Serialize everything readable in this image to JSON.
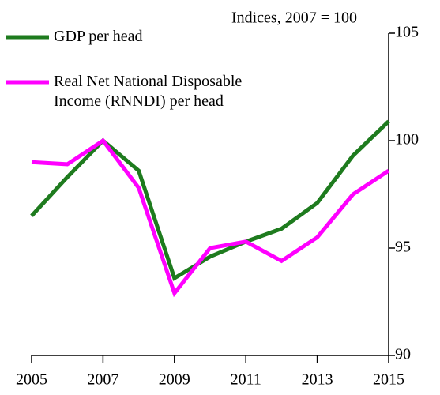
{
  "chart_data": {
    "type": "line",
    "annotation": "Indices, 2007 = 100",
    "x": [
      2005,
      2006,
      2007,
      2008,
      2009,
      2010,
      2011,
      2012,
      2013,
      2014,
      2015
    ],
    "xlim": [
      2005,
      2015
    ],
    "xticks": [
      2005,
      2007,
      2009,
      2011,
      2013,
      2015
    ],
    "ylim": [
      90,
      105
    ],
    "yticks": [
      90,
      95,
      100,
      105
    ],
    "grid": false,
    "y_axis_side": "right",
    "series": [
      {
        "name": "GDP per head",
        "color": "#1e7b1e",
        "values": [
          96.5,
          98.3,
          100,
          98.6,
          93.6,
          94.6,
          95.3,
          95.9,
          97.1,
          99.3,
          100.9
        ]
      },
      {
        "name": "Real Net National Disposable Income (RNNDI) per head",
        "color": "#ff00ff",
        "values": [
          99.0,
          98.9,
          100,
          97.8,
          92.9,
          95.0,
          95.3,
          94.4,
          95.5,
          97.5,
          98.6
        ]
      }
    ]
  }
}
